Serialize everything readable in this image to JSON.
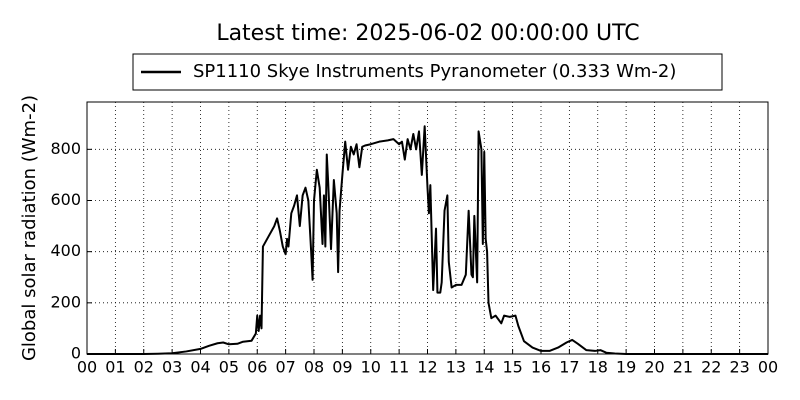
{
  "chart_data": {
    "type": "line",
    "title": "Latest time: 2025-06-02 00:00:00 UTC",
    "y_label": "Global solar radiation (Wm-2)",
    "x": [
      0,
      1,
      2,
      2.5,
      3,
      3.5,
      4,
      4.3,
      4.6,
      4.8,
      5,
      5.3,
      5.5,
      5.8,
      5.95,
      6.0,
      6.05,
      6.1,
      6.15,
      6.2,
      6.4,
      6.6,
      6.7,
      6.8,
      6.9,
      7.0,
      7.05,
      7.1,
      7.2,
      7.3,
      7.4,
      7.5,
      7.6,
      7.7,
      7.8,
      7.9,
      7.95,
      8.0,
      8.1,
      8.2,
      8.3,
      8.35,
      8.4,
      8.45,
      8.5,
      8.6,
      8.7,
      8.8,
      8.85,
      8.9,
      9.0,
      9.1,
      9.2,
      9.3,
      9.4,
      9.5,
      9.6,
      9.7,
      9.8,
      10,
      10.3,
      10.6,
      10.8,
      11,
      11.1,
      11.2,
      11.3,
      11.4,
      11.5,
      11.6,
      11.7,
      11.8,
      11.9,
      12.0,
      12.05,
      12.1,
      12.2,
      12.3,
      12.35,
      12.45,
      12.5,
      12.6,
      12.7,
      12.75,
      12.85,
      13.0,
      13.2,
      13.35,
      13.45,
      13.55,
      13.6,
      13.65,
      13.75,
      13.8,
      13.9,
      13.95,
      14.0,
      14.05,
      14.1,
      14.15,
      14.25,
      14.4,
      14.6,
      14.7,
      14.9,
      15.1,
      15.2,
      15.4,
      15.7,
      16.0,
      16.3,
      16.6,
      16.9,
      17.1,
      17.3,
      17.6,
      17.9,
      18.1,
      18.3,
      18.6,
      19,
      20,
      22,
      24
    ],
    "series": [
      {
        "name": "SP1110 Skye Instruments Pyranometer (0.333 Wm-2)",
        "color": "#000000",
        "values": [
          0,
          0,
          0,
          1,
          3,
          10,
          20,
          32,
          42,
          45,
          38,
          40,
          48,
          52,
          80,
          150,
          90,
          150,
          100,
          420,
          460,
          500,
          530,
          480,
          420,
          390,
          450,
          420,
          550,
          580,
          620,
          500,
          620,
          650,
          600,
          400,
          290,
          600,
          720,
          650,
          430,
          620,
          420,
          780,
          670,
          410,
          680,
          550,
          320,
          560,
          700,
          830,
          720,
          810,
          780,
          820,
          730,
          810,
          815,
          820,
          830,
          835,
          840,
          820,
          830,
          760,
          840,
          800,
          860,
          800,
          870,
          700,
          890,
          650,
          550,
          660,
          250,
          490,
          240,
          240,
          280,
          560,
          620,
          360,
          260,
          270,
          270,
          310,
          560,
          310,
          300,
          540,
          280,
          870,
          800,
          430,
          790,
          450,
          400,
          200,
          140,
          150,
          120,
          150,
          145,
          150,
          110,
          50,
          25,
          12,
          12,
          25,
          45,
          55,
          40,
          15,
          12,
          15,
          5,
          2,
          0,
          0,
          0,
          0
        ]
      }
    ],
    "xlim": [
      0,
      24
    ],
    "xticks": [
      {
        "value": 0,
        "label": "00"
      },
      {
        "value": 1,
        "label": "01"
      },
      {
        "value": 2,
        "label": "02"
      },
      {
        "value": 3,
        "label": "03"
      },
      {
        "value": 4,
        "label": "04"
      },
      {
        "value": 5,
        "label": "05"
      },
      {
        "value": 6,
        "label": "06"
      },
      {
        "value": 7,
        "label": "07"
      },
      {
        "value": 8,
        "label": "08"
      },
      {
        "value": 9,
        "label": "09"
      },
      {
        "value": 10,
        "label": "10"
      },
      {
        "value": 11,
        "label": "11"
      },
      {
        "value": 12,
        "label": "12"
      },
      {
        "value": 13,
        "label": "13"
      },
      {
        "value": 14,
        "label": "14"
      },
      {
        "value": 15,
        "label": "15"
      },
      {
        "value": 16,
        "label": "16"
      },
      {
        "value": 17,
        "label": "17"
      },
      {
        "value": 18,
        "label": "18"
      },
      {
        "value": 19,
        "label": "19"
      },
      {
        "value": 20,
        "label": "20"
      },
      {
        "value": 21,
        "label": "21"
      },
      {
        "value": 22,
        "label": "22"
      },
      {
        "value": 23,
        "label": "23"
      },
      {
        "value": 24,
        "label": "00"
      }
    ],
    "ylim": [
      0,
      985
    ],
    "yticks": [
      0,
      200,
      400,
      600,
      800
    ],
    "grid": true,
    "legend": "top"
  }
}
